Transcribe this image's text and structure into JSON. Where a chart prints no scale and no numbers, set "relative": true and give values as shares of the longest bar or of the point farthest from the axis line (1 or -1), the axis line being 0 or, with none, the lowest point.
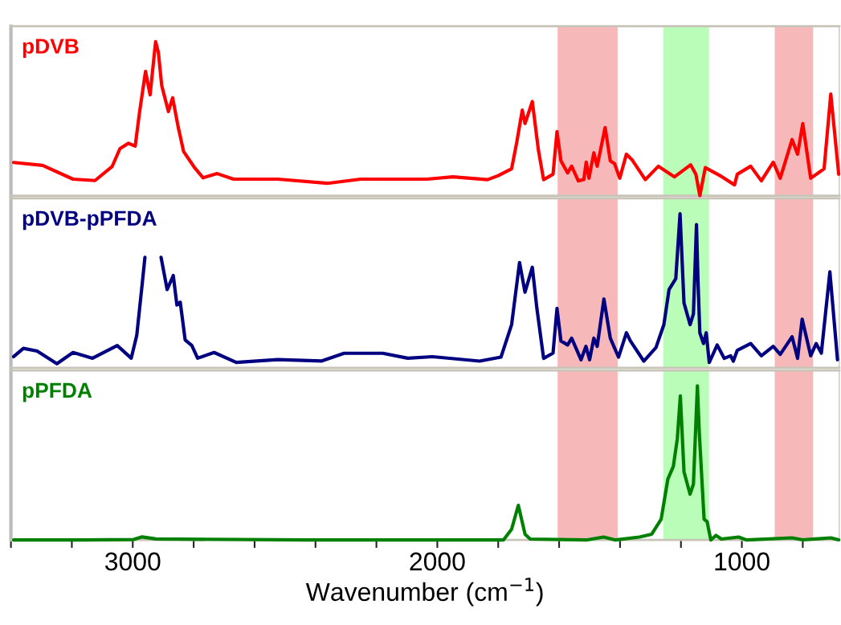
{
  "chart_data": [
    {
      "type": "line",
      "relative": true,
      "xlim": [
        3400,
        680
      ],
      "tick_labels": false,
      "bands": [
        {
          "axis": "x",
          "from": 1605,
          "to": 1408,
          "color": "#f4a6a6"
        },
        {
          "axis": "x",
          "from": 1258,
          "to": 1108,
          "color": "#a8fca8"
        },
        {
          "axis": "x",
          "from": 892,
          "to": 766,
          "color": "#f4a6a6"
        }
      ],
      "series": [
        {
          "name": "pDVB",
          "color": "#ff0000",
          "x": [
            3391,
            3296,
            3196,
            3124,
            3068,
            3042,
            3014,
            2992,
            2978,
            2958,
            2943,
            2925,
            2916,
            2905,
            2883,
            2869,
            2851,
            2833,
            2796,
            2769,
            2723,
            2669,
            2524,
            2361,
            2252,
            2034,
            1949,
            1835,
            1800,
            1756,
            1739,
            1721,
            1712,
            1688,
            1668,
            1651,
            1620,
            1607,
            1594,
            1572,
            1559,
            1537,
            1519,
            1511,
            1502,
            1486,
            1475,
            1449,
            1432,
            1418,
            1401,
            1379,
            1361,
            1317,
            1274,
            1221,
            1168,
            1151,
            1138,
            1120,
            1072,
            1024,
            1015,
            971,
            936,
            897,
            874,
            835,
            817,
            800,
            774,
            730,
            708,
            682
          ],
          "values": [
            0.216,
            0.197,
            0.108,
            0.099,
            0.189,
            0.306,
            0.341,
            0.322,
            0.538,
            0.807,
            0.655,
            1.0,
            0.932,
            0.717,
            0.547,
            0.636,
            0.448,
            0.287,
            0.18,
            0.117,
            0.144,
            0.108,
            0.108,
            0.081,
            0.108,
            0.108,
            0.123,
            0.105,
            0.131,
            0.175,
            0.348,
            0.556,
            0.469,
            0.611,
            0.296,
            0.105,
            0.14,
            0.417,
            0.227,
            0.149,
            0.192,
            0.097,
            0.105,
            0.218,
            0.114,
            0.279,
            0.192,
            0.443,
            0.227,
            0.209,
            0.114,
            0.27,
            0.235,
            0.105,
            0.192,
            0.123,
            0.201,
            0.14,
            0.0,
            0.183,
            0.131,
            0.071,
            0.14,
            0.192,
            0.097,
            0.218,
            0.114,
            0.365,
            0.27,
            0.469,
            0.114,
            0.175,
            0.66,
            0.14
          ]
        }
      ]
    },
    {
      "type": "line",
      "relative": true,
      "xlim": [
        3400,
        680
      ],
      "tick_labels": false,
      "bands": [
        {
          "axis": "x",
          "from": 1605,
          "to": 1408,
          "color": "#f4a6a6"
        },
        {
          "axis": "x",
          "from": 1258,
          "to": 1108,
          "color": "#a8fca8"
        },
        {
          "axis": "x",
          "from": 892,
          "to": 766,
          "color": "#f4a6a6"
        }
      ],
      "series": [
        {
          "name": "pDVB-pPFDA",
          "color": "#000080",
          "x": [
            3391,
            3359,
            3314,
            3249,
            3196,
            3132,
            3051,
            3005,
            2987,
            2969,
            2960,
            2933,
            2907,
            2887,
            2867,
            2855,
            2844,
            2828,
            2806,
            2787,
            2733,
            2660,
            2524,
            2379,
            2306,
            2179,
            2097,
            2016,
            1861,
            1791,
            1756,
            1730,
            1712,
            1688,
            1673,
            1651,
            1620,
            1607,
            1594,
            1572,
            1559,
            1528,
            1512,
            1500,
            1486,
            1475,
            1453,
            1432,
            1405,
            1379,
            1366,
            1322,
            1282,
            1256,
            1239,
            1217,
            1203,
            1190,
            1170,
            1159,
            1149,
            1144,
            1138,
            1126,
            1117,
            1107,
            1081,
            1058,
            1037,
            1028,
            1015,
            971,
            936,
            897,
            874,
            835,
            817,
            802,
            774,
            756,
            739,
            711,
            686
          ],
          "values": [
            0.073,
            0.127,
            0.109,
            0.027,
            0.1,
            0.063,
            0.145,
            0.063,
            0.209,
            0.544,
            0.717,
            null,
            0.717,
            0.508,
            0.599,
            0.408,
            0.426,
            0.182,
            0.145,
            0.063,
            0.1,
            0.036,
            0.054,
            0.045,
            0.095,
            0.095,
            0.063,
            0.073,
            0.044,
            0.07,
            0.281,
            0.684,
            0.491,
            0.653,
            0.386,
            0.062,
            0.096,
            0.386,
            0.175,
            0.149,
            0.193,
            0.053,
            0.14,
            0.053,
            0.193,
            0.14,
            0.447,
            0.193,
            0.07,
            0.228,
            0.175,
            0.044,
            0.132,
            0.281,
            0.509,
            0.579,
            1.0,
            0.421,
            0.281,
            0.351,
            0.93,
            0.561,
            0.228,
            0.158,
            0.228,
            0.035,
            0.149,
            0.062,
            0.079,
            0.044,
            0.114,
            0.158,
            0.079,
            0.14,
            0.088,
            0.202,
            0.062,
            0.316,
            0.079,
            0.158,
            0.096,
            0.623,
            0.053
          ]
        }
      ]
    },
    {
      "type": "line",
      "relative": true,
      "xlim": [
        3400,
        680
      ],
      "tick_labels": "x",
      "xlabel": "Wavenumber (cm$^{−1}$)",
      "xticks": [
        {
          "value": 3400,
          "label": null
        },
        {
          "value": 3200,
          "label": null
        },
        3000,
        {
          "value": 2800,
          "label": null
        },
        {
          "value": 2600,
          "label": null
        },
        {
          "value": 2400,
          "label": null
        },
        {
          "value": 2200,
          "label": null
        },
        2000,
        {
          "value": 1800,
          "label": null
        },
        {
          "value": 1600,
          "label": null
        },
        {
          "value": 1400,
          "label": null
        },
        {
          "value": 1200,
          "label": null
        },
        1000,
        {
          "value": 800,
          "label": null
        }
      ],
      "bands": [
        {
          "axis": "x",
          "from": 1605,
          "to": 1408,
          "color": "#f4a6a6"
        },
        {
          "axis": "x",
          "from": 1258,
          "to": 1108,
          "color": "#a8fca8"
        },
        {
          "axis": "x",
          "from": 892,
          "to": 766,
          "color": "#f4a6a6"
        }
      ],
      "series": [
        {
          "name": "pPFDA",
          "color": "#008000",
          "x": [
            3391,
            3160,
            2997,
            2969,
            2924,
            2434,
            2034,
            1783,
            1756,
            1734,
            1712,
            1695,
            1511,
            1454,
            1415,
            1336,
            1296,
            1265,
            1243,
            1225,
            1212,
            1202,
            1190,
            1170,
            1159,
            1146,
            1140,
            1124,
            1114,
            1102,
            1085,
            1067,
            1011,
            984,
            835,
            800,
            708,
            682
          ],
          "values": [
            0,
            0,
            0.003,
            0.02,
            0.007,
            0,
            0,
            0,
            0.07,
            0.225,
            0.038,
            0.006,
            0,
            0.019,
            0,
            0.019,
            0.038,
            0.135,
            0.395,
            0.477,
            0.655,
            0.935,
            0.443,
            0.297,
            0.363,
            1.0,
            0.704,
            0.135,
            0.119,
            0,
            0.03,
            0.006,
            0.019,
            0,
            0.014,
            0.001,
            0.014,
            0.001
          ]
        }
      ]
    }
  ]
}
